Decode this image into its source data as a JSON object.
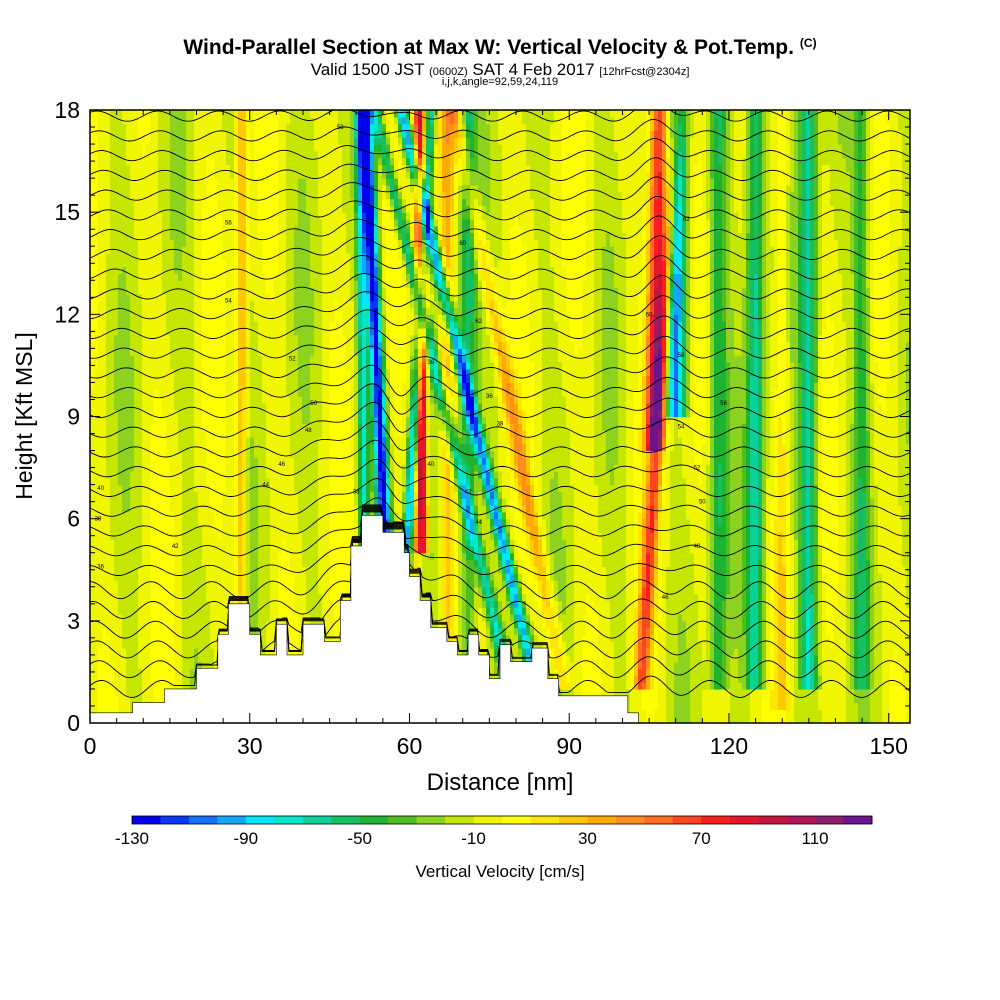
{
  "header": {
    "title": "Wind-Parallel Section at Max W: Vertical Velocity & Pot.Temp.",
    "copyright": "(C)",
    "subtitle_main": "Valid 1500 JST",
    "subtitle_utc": "(0600Z)",
    "subtitle_date": "SAT 4 Feb 2017",
    "subtitle_fcst": "[12hrFcst@2304z]",
    "subtitle2": "i,j,k,angle=92,59,24,119"
  },
  "chart_data": {
    "type": "heatmap",
    "title": "Wind-Parallel Section at Max W: Vertical Velocity & Pot.Temp.",
    "xlabel": "Distance [nm]",
    "ylabel": "Height [Kft MSL]",
    "xlim": [
      0,
      154
    ],
    "ylim": [
      0,
      18
    ],
    "xticks": [
      0,
      30,
      60,
      90,
      120,
      150
    ],
    "yticks": [
      0,
      3,
      6,
      9,
      12,
      15,
      18
    ],
    "colorbar": {
      "label": "Vertical Velocity [cm/s]",
      "tick_labels": [
        -130,
        -90,
        -50,
        -10,
        30,
        70,
        110
      ],
      "levels": [
        -130,
        -120,
        -110,
        -100,
        -90,
        -80,
        -70,
        -60,
        -50,
        -40,
        -30,
        -20,
        -10,
        0,
        10,
        20,
        30,
        40,
        50,
        60,
        70,
        80,
        90,
        100,
        110,
        120,
        130
      ],
      "colors": [
        "#0000ee",
        "#0a37f5",
        "#1470f8",
        "#12a8fa",
        "#00e8fa",
        "#00e8c8",
        "#0ad29a",
        "#14c064",
        "#1eb432",
        "#4cbe1e",
        "#8cd21e",
        "#c4e600",
        "#f0f500",
        "#ffff00",
        "#ffe600",
        "#ffc800",
        "#ffaa00",
        "#ff8c1e",
        "#ff6e1e",
        "#ff461e",
        "#ff1e1e",
        "#e6142d",
        "#c8143c",
        "#b4145a",
        "#8c1e6e",
        "#6e148c"
      ]
    },
    "terrain": [
      [
        0,
        0.3
      ],
      [
        8,
        0.3
      ],
      [
        8,
        0.6
      ],
      [
        14,
        0.6
      ],
      [
        14,
        1.0
      ],
      [
        20,
        1.0
      ],
      [
        20,
        1.6
      ],
      [
        24,
        1.6
      ],
      [
        24,
        2.6
      ],
      [
        26,
        2.6
      ],
      [
        26,
        3.5
      ],
      [
        30,
        3.5
      ],
      [
        30,
        2.6
      ],
      [
        32,
        2.6
      ],
      [
        32,
        2.0
      ],
      [
        35,
        2.0
      ],
      [
        35,
        2.9
      ],
      [
        37,
        2.9
      ],
      [
        37,
        2.0
      ],
      [
        40,
        2.0
      ],
      [
        40,
        2.9
      ],
      [
        44,
        2.9
      ],
      [
        44,
        2.4
      ],
      [
        47,
        2.4
      ],
      [
        47,
        3.6
      ],
      [
        49,
        3.6
      ],
      [
        49,
        5.2
      ],
      [
        51,
        5.2
      ],
      [
        51,
        6.1
      ],
      [
        55,
        6.1
      ],
      [
        55,
        5.6
      ],
      [
        59,
        5.6
      ],
      [
        59,
        5.0
      ],
      [
        60,
        5.0
      ],
      [
        60,
        4.3
      ],
      [
        62,
        4.3
      ],
      [
        62,
        3.6
      ],
      [
        64,
        3.6
      ],
      [
        64,
        2.8
      ],
      [
        67,
        2.8
      ],
      [
        67,
        2.4
      ],
      [
        69,
        2.4
      ],
      [
        69,
        2.0
      ],
      [
        71,
        2.0
      ],
      [
        71,
        2.6
      ],
      [
        73,
        2.6
      ],
      [
        73,
        2.0
      ],
      [
        75,
        2.0
      ],
      [
        75,
        1.3
      ],
      [
        77,
        1.3
      ],
      [
        77,
        2.3
      ],
      [
        79,
        2.3
      ],
      [
        79,
        1.8
      ],
      [
        83,
        1.8
      ],
      [
        83,
        2.2
      ],
      [
        86,
        2.2
      ],
      [
        86,
        1.3
      ],
      [
        88,
        1.3
      ],
      [
        88,
        0.8
      ],
      [
        101,
        0.8
      ],
      [
        101,
        0.3
      ],
      [
        103,
        0.3
      ],
      [
        103,
        0
      ]
    ],
    "theta_contour_labels": [
      "36",
      "38",
      "40",
      "42",
      "44",
      "46",
      "48",
      "50",
      "52",
      "54",
      "56",
      "58",
      "60",
      "62"
    ],
    "notes": "Filled contours of vertical velocity with black potential temperature isentropes; strong updraft/downdraft pairs over the mountain near 55-65 nm and around 105-115 nm."
  }
}
